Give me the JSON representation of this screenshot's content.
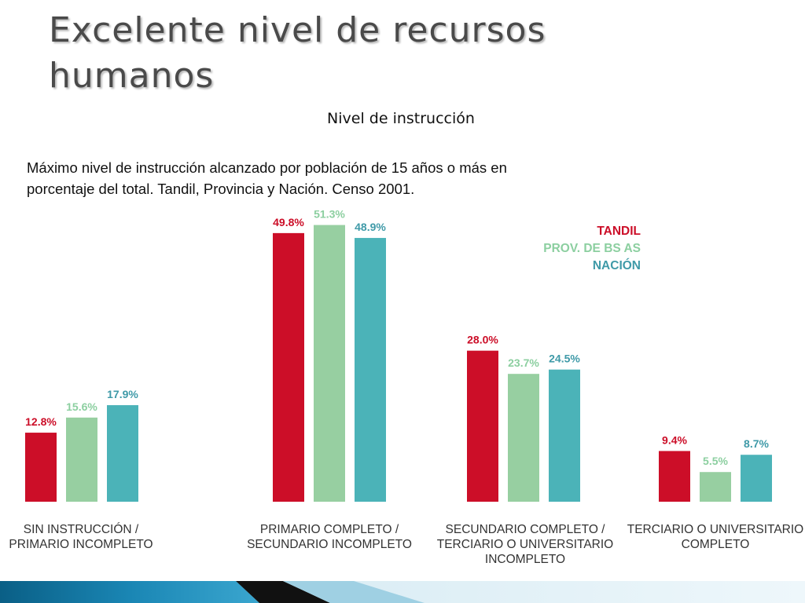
{
  "slide": {
    "title_line1": "Excelente nivel de recursos",
    "title_line2": "humanos",
    "subtitle": "Nivel de instrucción",
    "description": "Máximo nivel de instrucción alcanzado por población de 15 años o más en porcentaje del total. Tandil, Provincia y Nación. Censo 2001."
  },
  "colors": {
    "tandil": "#cc0e28",
    "provincia": "#97cfa1",
    "nacion": "#4bb3b8",
    "prov_label": "#8ccfa0",
    "nacion_label": "#3f9aa8"
  },
  "chart_data": {
    "type": "bar",
    "categories": [
      [
        "SIN INSTRUCCIÓN /",
        "PRIMARIO INCOMPLETO"
      ],
      [
        "PRIMARIO COMPLETO /",
        "SECUNDARIO INCOMPLETO"
      ],
      [
        "SECUNDARIO COMPLETO /",
        "TERCIARIO O UNIVERSITARIO",
        "INCOMPLETO"
      ],
      [
        "TERCIARIO O UNIVERSITARIO",
        "COMPLETO"
      ]
    ],
    "series": [
      {
        "name": "TANDIL",
        "values": [
          12.8,
          49.8,
          28.0,
          9.4
        ],
        "labels": [
          "12.8%",
          "49.8%",
          "28.0%",
          "9.4%"
        ]
      },
      {
        "name": "PROV. DE BS AS",
        "values": [
          15.6,
          51.3,
          23.7,
          5.5
        ],
        "labels": [
          "15.6%",
          "51.3%",
          "23.7%",
          "5.5%"
        ]
      },
      {
        "name": "NACIÓN",
        "values": [
          17.9,
          48.9,
          24.5,
          8.7
        ],
        "labels": [
          "17.9%",
          "48.9%",
          "24.5%",
          "8.7%"
        ]
      }
    ],
    "unit": "%",
    "ylim": [
      0,
      55
    ],
    "grid": false,
    "legend_position": "top-right"
  }
}
